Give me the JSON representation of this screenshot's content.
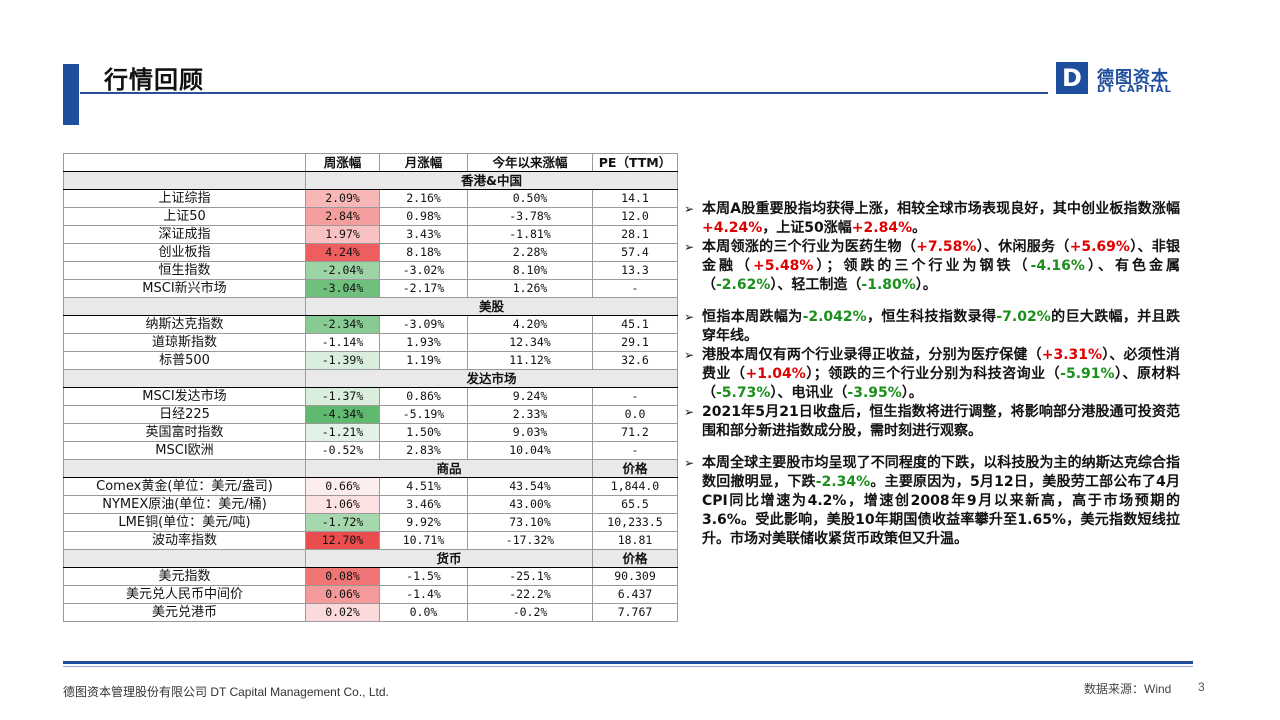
{
  "title": "行情回顾",
  "logo": {
    "letter": "D",
    "cn": "德图资本",
    "en": "DT CAPITAL"
  },
  "colors": {
    "brand": "#1f4e9c",
    "up": "#e00000",
    "down": "#1a8f1a"
  },
  "table": {
    "headers": [
      "",
      "周涨幅",
      "月涨幅",
      "今年以来涨幅",
      "PE（TTM）"
    ],
    "sections": [
      {
        "title": "香港&中国",
        "rows": [
          {
            "name": "上证综指",
            "week": "2.09%",
            "month": "2.16%",
            "ytd": "0.50%",
            "pe": "14.1",
            "wbg": "#f7b7b7"
          },
          {
            "name": "上证50",
            "week": "2.84%",
            "month": "0.98%",
            "ytd": "-3.78%",
            "pe": "12.0",
            "wbg": "#f49e9e"
          },
          {
            "name": "深证成指",
            "week": "1.97%",
            "month": "3.43%",
            "ytd": "-1.81%",
            "pe": "28.1",
            "wbg": "#f8c2c2"
          },
          {
            "name": "创业板指",
            "week": "4.24%",
            "month": "8.18%",
            "ytd": "2.28%",
            "pe": "57.4",
            "wbg": "#ee5e5e"
          },
          {
            "name": "恒生指数",
            "week": "-2.04%",
            "month": "-3.02%",
            "ytd": "8.10%",
            "pe": "13.3",
            "wbg": "#9dd4a6"
          },
          {
            "name": "MSCI新兴市场",
            "week": "-3.04%",
            "month": "-2.17%",
            "ytd": "1.26%",
            "pe": "-",
            "wbg": "#6ec07c"
          }
        ]
      },
      {
        "title": "美股",
        "rows": [
          {
            "name": "纳斯达克指数",
            "week": "-2.34%",
            "month": "-3.09%",
            "ytd": "4.20%",
            "pe": "45.1",
            "wbg": "#88ca93"
          },
          {
            "name": "道琼斯指数",
            "week": "-1.14%",
            "month": "1.93%",
            "ytd": "12.34%",
            "pe": "29.1",
            "wbg": "#ffffff"
          },
          {
            "name": "标普500",
            "week": "-1.39%",
            "month": "1.19%",
            "ytd": "11.12%",
            "pe": "32.6",
            "wbg": "#d9eedd"
          }
        ]
      },
      {
        "title": "发达市场",
        "rows": [
          {
            "name": "MSCI发达市场",
            "week": "-1.37%",
            "month": "0.86%",
            "ytd": "9.24%",
            "pe": "-",
            "wbg": "#d9eedd"
          },
          {
            "name": "日经225",
            "week": "-4.34%",
            "month": "-5.19%",
            "ytd": "2.33%",
            "pe": "0.0",
            "wbg": "#5fba6f"
          },
          {
            "name": "英国富时指数",
            "week": "-1.21%",
            "month": "1.50%",
            "ytd": "9.03%",
            "pe": "71.2",
            "wbg": "#e3f2e6"
          },
          {
            "name": "MSCI欧洲",
            "week": "-0.52%",
            "month": "2.83%",
            "ytd": "10.04%",
            "pe": "-",
            "wbg": "#ffffff"
          }
        ]
      },
      {
        "title": "商品",
        "pe_header": "价格",
        "rows": [
          {
            "name": "Comex黄金(单位：美元/盎司)",
            "week": "0.66%",
            "month": "4.51%",
            "ytd": "43.54%",
            "pe": "1,844.0",
            "wbg": "#fdeeee"
          },
          {
            "name": "NYMEX原油(单位：美元/桶)",
            "week": "1.06%",
            "month": "3.46%",
            "ytd": "43.00%",
            "pe": "65.5",
            "wbg": "#fce2e2"
          },
          {
            "name": "LME铜(单位：美元/吨)",
            "week": "-1.72%",
            "month": "9.92%",
            "ytd": "73.10%",
            "pe": "10,233.5",
            "wbg": "#a6d8ae"
          },
          {
            "name": "波动率指数",
            "week": "12.70%",
            "month": "10.71%",
            "ytd": "-17.32%",
            "pe": "18.81",
            "wbg": "#ea4d4d"
          }
        ]
      },
      {
        "title": "货币",
        "pe_header": "价格",
        "rows": [
          {
            "name": "美元指数",
            "week": "0.08%",
            "month": "-1.5%",
            "ytd": "-25.1%",
            "pe": "90.309",
            "wbg": "#f07575"
          },
          {
            "name": "美元兑人民币中间价",
            "week": "0.06%",
            "month": "-1.4%",
            "ytd": "-22.2%",
            "pe": "6.437",
            "wbg": "#f49a9a"
          },
          {
            "name": "美元兑港币",
            "week": "0.02%",
            "month": "0.0%",
            "ytd": "-0.2%",
            "pe": "7.767",
            "wbg": "#fadada"
          }
        ]
      }
    ]
  },
  "bullet_marker": "➢",
  "bullets": [
    {
      "gap_before": false,
      "parts": [
        {
          "t": "本周A股重要股指均获得上涨，相较全球市场表现良好，其中创业板指数涨幅"
        },
        {
          "t": "+4.24%",
          "c": "red"
        },
        {
          "t": "，上证50涨幅"
        },
        {
          "t": "+2.84%",
          "c": "red"
        },
        {
          "t": "。"
        }
      ]
    },
    {
      "gap_before": false,
      "parts": [
        {
          "t": "本周领涨的三个行业为医药生物（"
        },
        {
          "t": "+7.58%",
          "c": "red"
        },
        {
          "t": "）、休闲服务（"
        },
        {
          "t": "+5.69%",
          "c": "red"
        },
        {
          "t": "）、非银金融（"
        },
        {
          "t": "+5.48%",
          "c": "red"
        },
        {
          "t": "）；领跌的三个行业为钢铁（"
        },
        {
          "t": "-4.16%",
          "c": "grn"
        },
        {
          "t": "）、有色金属（"
        },
        {
          "t": "-2.62%",
          "c": "grn"
        },
        {
          "t": "）、轻工制造（"
        },
        {
          "t": "-1.80%",
          "c": "grn"
        },
        {
          "t": "）。"
        }
      ]
    },
    {
      "gap_before": true,
      "parts": [
        {
          "t": "恒指本周跌幅为"
        },
        {
          "t": "-2.042%",
          "c": "grn"
        },
        {
          "t": "，恒生科技指数录得"
        },
        {
          "t": "-7.02%",
          "c": "grn"
        },
        {
          "t": "的巨大跌幅，并且跌穿年线。"
        }
      ]
    },
    {
      "gap_before": false,
      "parts": [
        {
          "t": "港股本周仅有两个行业录得正收益，分别为医疗保健（"
        },
        {
          "t": "+3.31%",
          "c": "red"
        },
        {
          "t": "）、必须性消费业（"
        },
        {
          "t": "+1.04%",
          "c": "red"
        },
        {
          "t": "）；领跌的三个行业分别为科技咨询业（"
        },
        {
          "t": "-5.91%",
          "c": "grn"
        },
        {
          "t": "）、原材料（"
        },
        {
          "t": "-5.73%",
          "c": "grn"
        },
        {
          "t": "）、电讯业（"
        },
        {
          "t": "-3.95%",
          "c": "grn"
        },
        {
          "t": "）。"
        }
      ]
    },
    {
      "gap_before": false,
      "parts": [
        {
          "t": "2021年5月21日收盘后，恒生指数将进行调整，将影响部分港股通可投资范围和部分新进指数成分股，需时刻进行观察。"
        }
      ]
    },
    {
      "gap_before": true,
      "parts": [
        {
          "t": "本周全球主要股市均呈现了不同程度的下跌，以科技股为主的纳斯达克综合指数回撤明显，下跌"
        },
        {
          "t": "-2.34%",
          "c": "grn"
        },
        {
          "t": "。主要原因为，5月12日，美股劳工部公布了4月CPI同比增速为4.2%，增速创2008年9月以来新高，高于市场预期的3.6%。受此影响，美股10年期国债收益率攀升至1.65%，美元指数短线拉升。市场对美联储收紧货币政策但又升温。"
        }
      ]
    }
  ],
  "footer": {
    "company": "德图资本管理股份有限公司  DT Capital  Management  Co., Ltd.",
    "source": "数据来源：Wind",
    "page": "3"
  }
}
